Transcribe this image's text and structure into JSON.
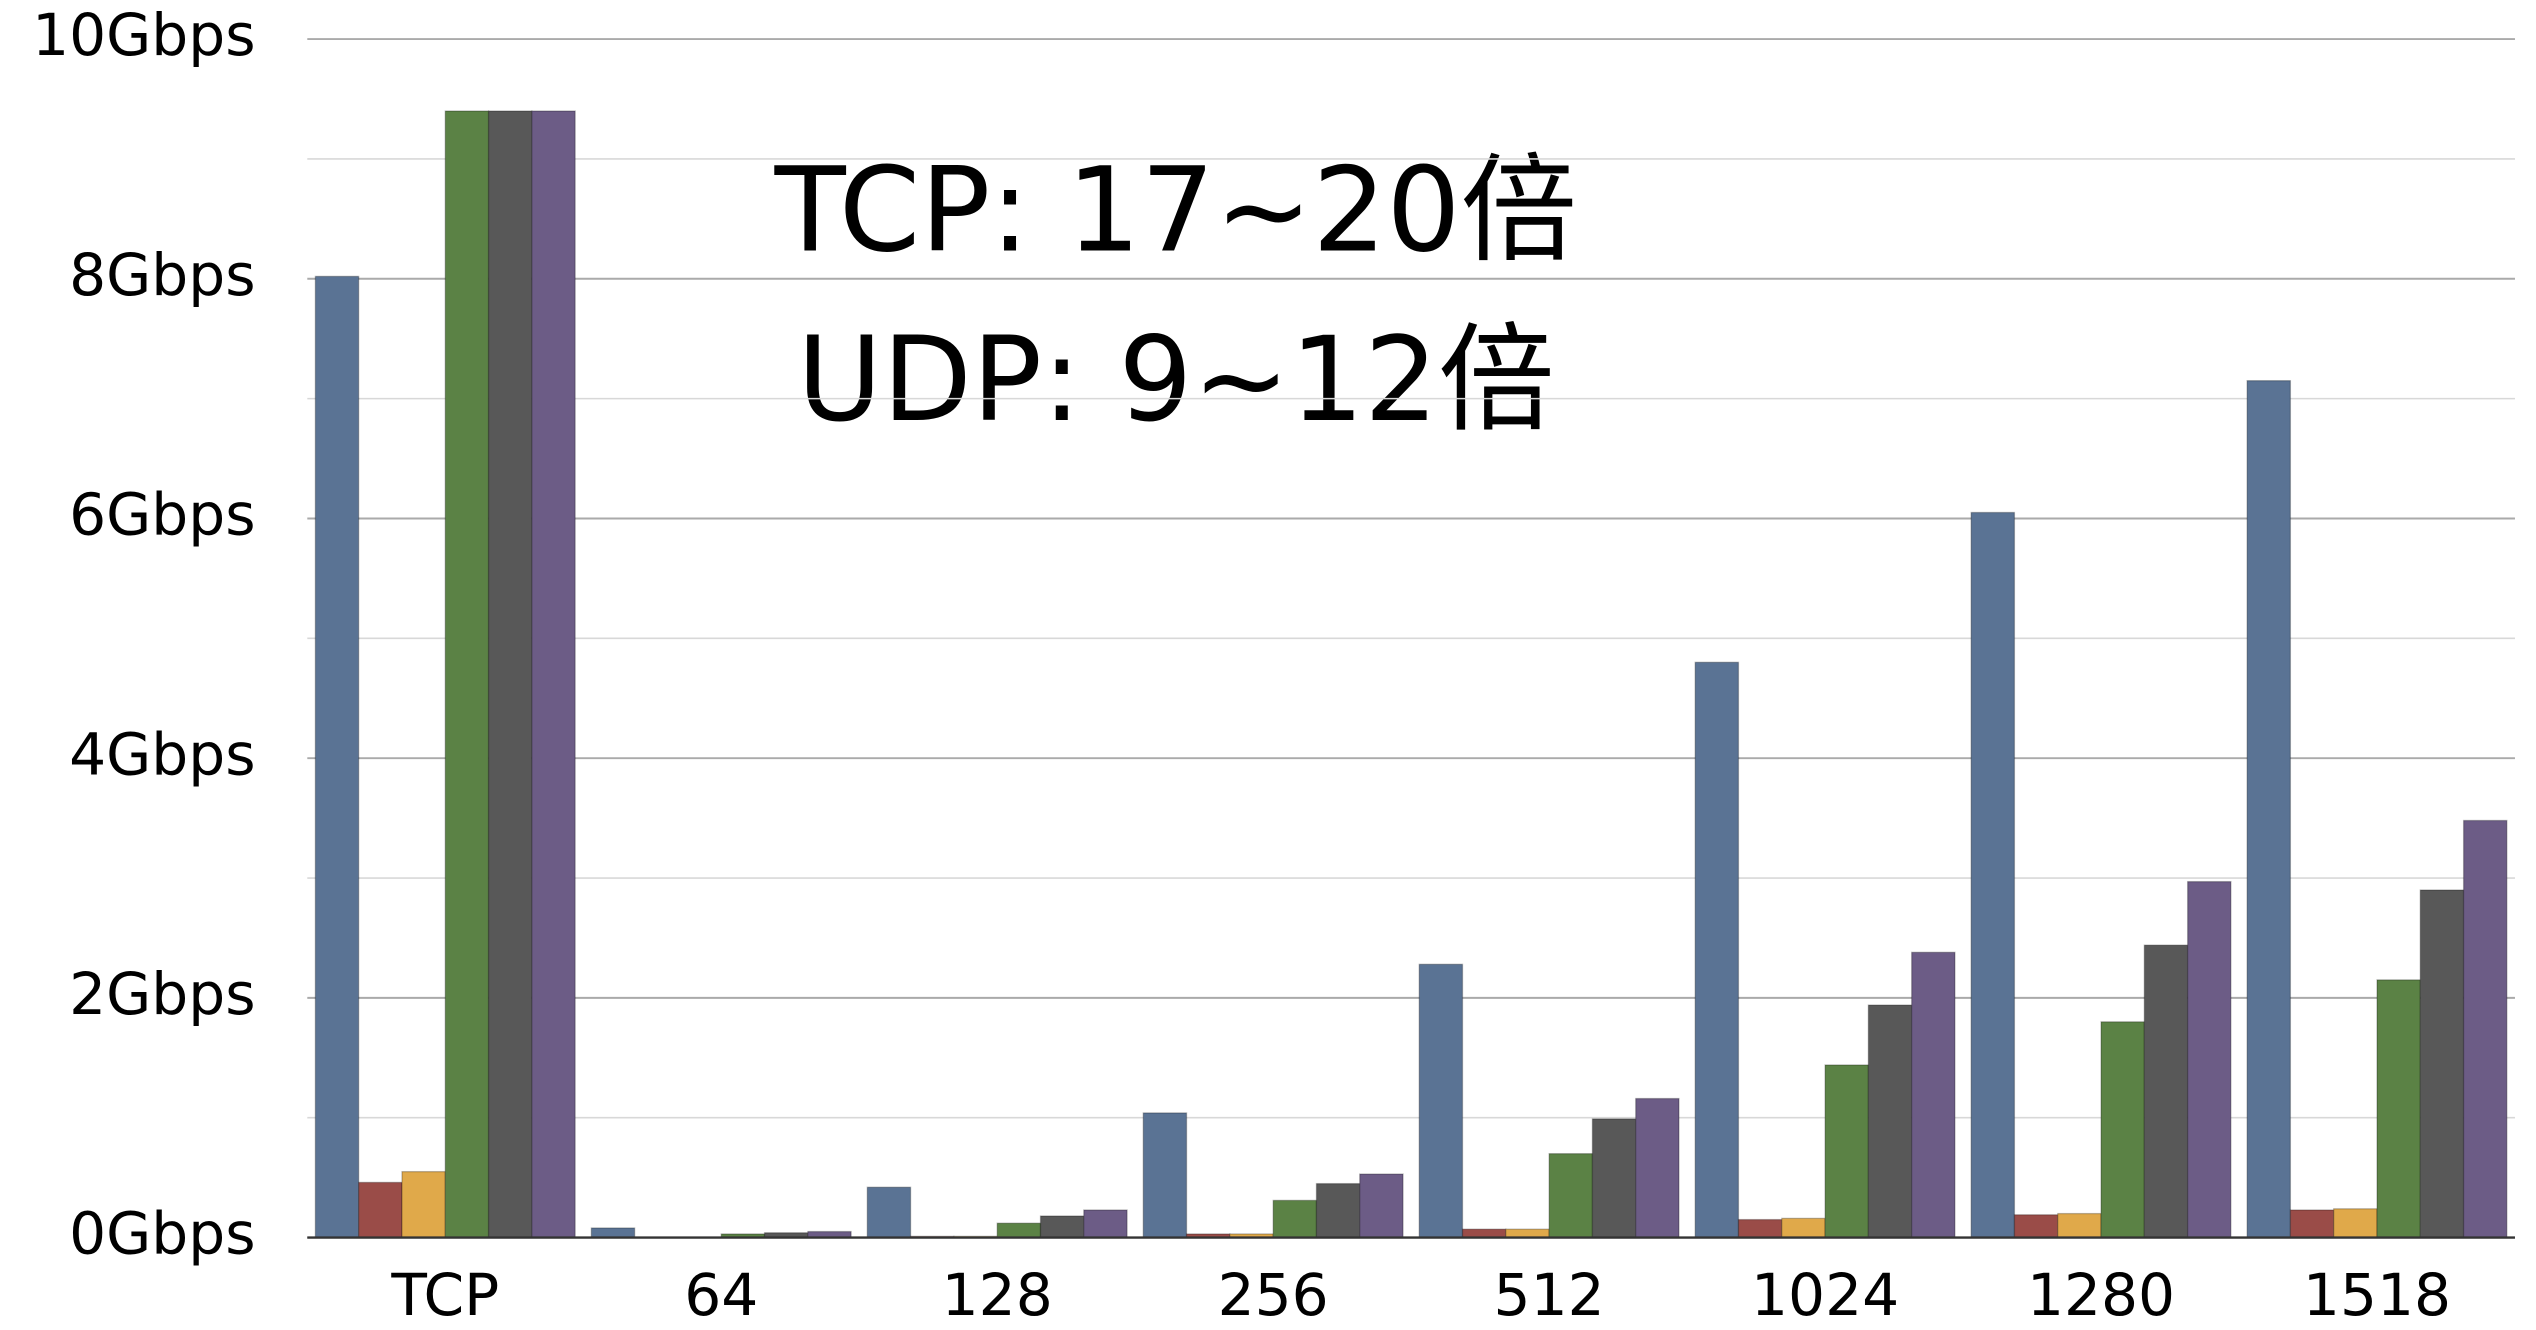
{
  "chart_data": {
    "type": "bar",
    "categories": [
      "TCP",
      "64",
      "128",
      "256",
      "512",
      "1024",
      "1280",
      "1518"
    ],
    "series": [
      {
        "color": "#5a7394",
        "values": [
          8.02,
          0.08,
          0.42,
          1.04,
          2.28,
          4.8,
          6.05,
          7.15
        ]
      },
      {
        "color": "#9a4c48",
        "values": [
          0.46,
          0,
          0.01,
          0.03,
          0.07,
          0.15,
          0.19,
          0.23
        ]
      },
      {
        "color": "#e0a94a",
        "values": [
          0.55,
          0,
          0.01,
          0.03,
          0.07,
          0.16,
          0.2,
          0.24
        ]
      },
      {
        "color": "#5b8245",
        "values": [
          9.4,
          0.03,
          0.12,
          0.31,
          0.7,
          1.44,
          1.8,
          2.15
        ]
      },
      {
        "color": "#585858",
        "values": [
          9.4,
          0.04,
          0.18,
          0.45,
          0.99,
          1.94,
          2.44,
          2.9
        ]
      },
      {
        "color": "#6c5c86",
        "values": [
          9.4,
          0.05,
          0.23,
          0.53,
          1.16,
          2.38,
          2.97,
          3.48
        ]
      }
    ],
    "ylim": [
      0,
      10
    ],
    "yticks": [
      {
        "value": 0,
        "label": "0Gbps"
      },
      {
        "value": 2,
        "label": "2Gbps"
      },
      {
        "value": 4,
        "label": "4Gbps"
      },
      {
        "value": 6,
        "label": "6Gbps"
      },
      {
        "value": 8,
        "label": "8Gbps"
      },
      {
        "value": 10,
        "label": "10Gbps"
      }
    ],
    "minor_yticks": [
      1,
      3,
      5,
      7,
      9
    ],
    "grid": true,
    "annotations": [
      "TCP: 17~20倍",
      "UDP: 9~12倍"
    ]
  }
}
